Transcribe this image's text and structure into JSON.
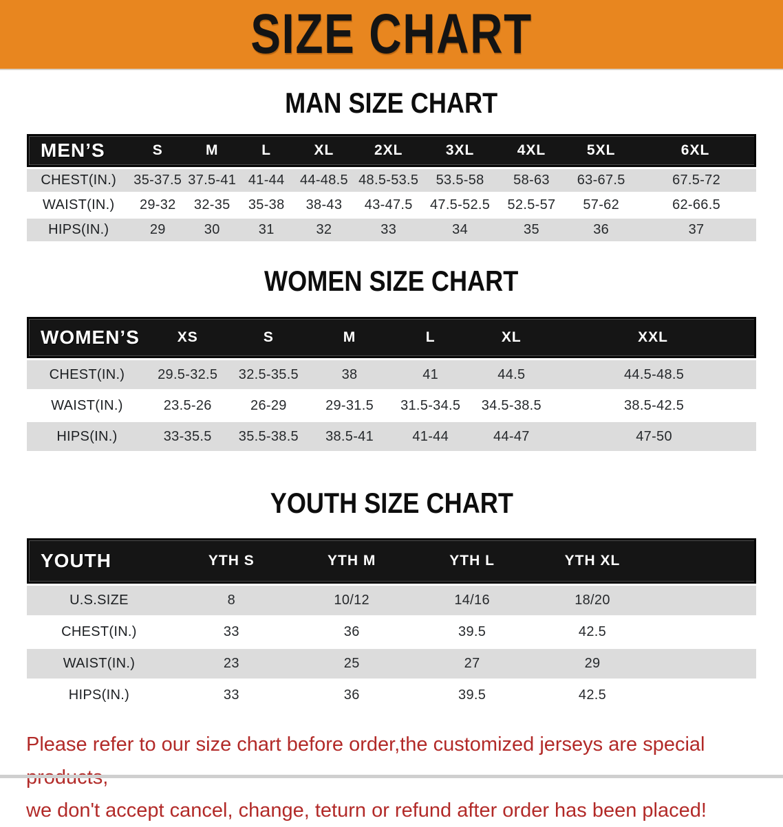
{
  "banner": {
    "title": "SIZE CHART"
  },
  "sections": [
    {
      "heading": "MAN SIZE CHART",
      "table": {
        "corner_label": "MEN’S",
        "size_columns": [
          "S",
          "M",
          "L",
          "XL",
          "2XL",
          "3XL",
          "4XL",
          "5XL",
          "6XL"
        ],
        "rows": [
          {
            "label": "CHEST(IN.)",
            "values": [
              "35-37.5",
              "37.5-41",
              "41-44",
              "44-48.5",
              "48.5-53.5",
              "53.5-58",
              "58-63",
              "63-67.5",
              "67.5-72"
            ]
          },
          {
            "label": "WAIST(IN.)",
            "values": [
              "29-32",
              "32-35",
              "35-38",
              "38-43",
              "43-47.5",
              "47.5-52.5",
              "52.5-57",
              "57-62",
              "62-66.5"
            ]
          },
          {
            "label": "HIPS(IN.)",
            "values": [
              "29",
              "30",
              "31",
              "32",
              "33",
              "34",
              "35",
              "36",
              "37"
            ]
          }
        ]
      }
    },
    {
      "heading": "WOMEN SIZE CHART",
      "table": {
        "corner_label": "WOMEN’S",
        "size_columns": [
          "XS",
          "S",
          "M",
          "L",
          "XL",
          "XXL"
        ],
        "rows": [
          {
            "label": "CHEST(IN.)",
            "values": [
              "29.5-32.5",
              "32.5-35.5",
              "38",
              "41",
              "44.5",
              "44.5-48.5"
            ]
          },
          {
            "label": "WAIST(IN.)",
            "values": [
              "23.5-26",
              "26-29",
              "29-31.5",
              "31.5-34.5",
              "34.5-38.5",
              "38.5-42.5"
            ]
          },
          {
            "label": "HIPS(IN.)",
            "values": [
              "33-35.5",
              "35.5-38.5",
              "38.5-41",
              "41-44",
              "44-47",
              "47-50"
            ]
          }
        ]
      }
    },
    {
      "heading": "YOUTH SIZE CHART",
      "table": {
        "corner_label": "YOUTH",
        "size_columns": [
          "YTH S",
          "YTH M",
          "YTH L",
          "YTH XL"
        ],
        "rows": [
          {
            "label": "U.S.SIZE",
            "values": [
              "8",
              "10/12",
              "14/16",
              "18/20"
            ]
          },
          {
            "label": "CHEST(IN.)",
            "values": [
              "33",
              "36",
              "39.5",
              "42.5"
            ]
          },
          {
            "label": "WAIST(IN.)",
            "values": [
              "23",
              "25",
              "27",
              "29"
            ]
          },
          {
            "label": "HIPS(IN.)",
            "values": [
              "33",
              "36",
              "39.5",
              "42.5"
            ]
          }
        ]
      }
    }
  ],
  "footer": {
    "line1": "Please refer to our size chart before order,the customized jerseys are special products,",
    "line2": "we don't accept cancel, change, teturn or refund after order has been placed!"
  },
  "colors": {
    "banner_bg": "#E8861F",
    "header_bar": "#151515",
    "row_stripe": "#DCDCDC",
    "footer_text": "#B22A28"
  }
}
